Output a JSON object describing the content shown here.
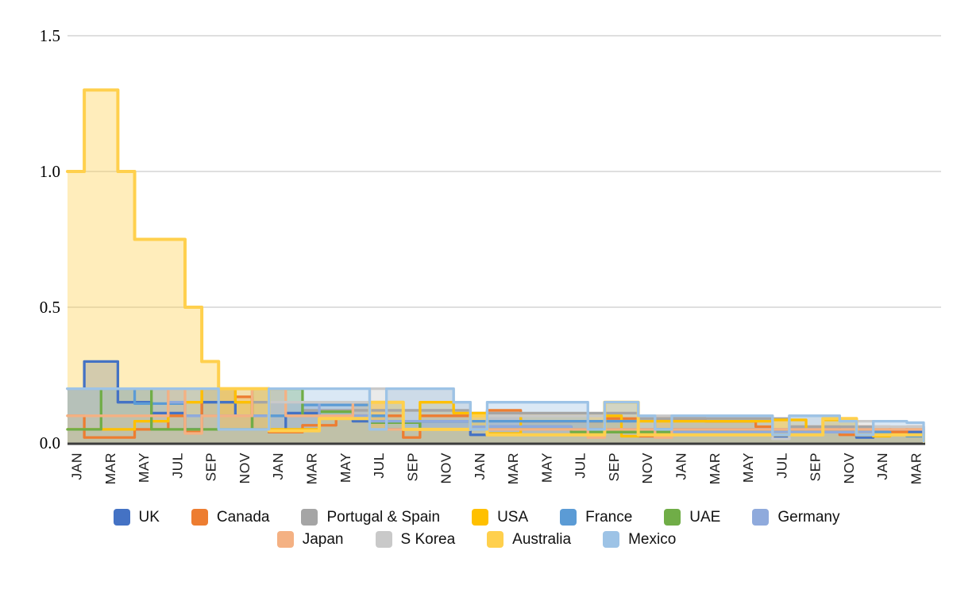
{
  "chart_data": {
    "type": "area",
    "subtype": "step-monthly",
    "title": "",
    "xlabel": "",
    "ylabel": "",
    "ylim": [
      0,
      1.5
    ],
    "y_ticks": [
      0,
      0.5,
      1,
      1.5
    ],
    "y_tick_labels": [
      "0.0",
      "0.5",
      "1.0",
      "1.5"
    ],
    "grid": true,
    "axis_color": "#3c3c3c",
    "gridline_color": "#cccccc",
    "legend_position": "bottom",
    "months": [
      "JAN",
      "FEB",
      "MAR",
      "APR",
      "MAY",
      "JUN",
      "JUL",
      "AUG",
      "SEP",
      "OCT",
      "NOV",
      "DEC",
      "JAN",
      "FEB",
      "MAR",
      "APR",
      "MAY",
      "JUN",
      "JUL",
      "AUG",
      "SEP",
      "OCT",
      "NOV",
      "DEC",
      "JAN",
      "FEB",
      "MAR",
      "APR",
      "MAY",
      "JUN",
      "JUL",
      "AUG",
      "SEP",
      "OCT",
      "NOV",
      "DEC",
      "JAN",
      "FEB",
      "MAR",
      "APR",
      "MAY",
      "JUN",
      "JUL",
      "AUG",
      "SEP",
      "OCT",
      "NOV",
      "DEC",
      "JAN",
      "FEB",
      "MAR"
    ],
    "x_tick_every": 2,
    "legend_rows": [
      [
        "UK",
        "Canada",
        "Portugal & Spain",
        "USA",
        "France",
        "UAE",
        "Germany"
      ],
      [
        "Japan",
        "S Korea",
        "Australia",
        "Mexico"
      ]
    ],
    "series": [
      {
        "name": "UK",
        "id": "uk",
        "color": "#4472C4",
        "values": [
          0.2,
          0.3,
          0.3,
          0.15,
          0.15,
          0.11,
          0.11,
          0.05,
          0.15,
          0.15,
          0.1,
          0.05,
          0.04,
          0.11,
          0.11,
          0.1,
          0.1,
          0.08,
          0.08,
          0.05,
          0.05,
          0.08,
          0.08,
          0.08,
          0.03,
          0.06,
          0.06,
          0.06,
          0.06,
          0.06,
          0.05,
          0.05,
          0.05,
          0.05,
          0.05,
          0.05,
          0.05,
          0.05,
          0.05,
          0.05,
          0.05,
          0.05,
          0.02,
          0.04,
          0.04,
          0.04,
          0.04,
          0.02,
          0.04,
          0.04,
          0.04
        ]
      },
      {
        "name": "Canada",
        "id": "canada",
        "color": "#ED7D31",
        "values": [
          0.1,
          0.02,
          0.02,
          0.02,
          0.05,
          0.05,
          0.1,
          0.04,
          0.2,
          0.2,
          0.17,
          0.1,
          0.04,
          0.04,
          0.065,
          0.065,
          0.1,
          0.1,
          0.1,
          0.1,
          0.02,
          0.1,
          0.1,
          0.1,
          0.05,
          0.12,
          0.12,
          0.08,
          0.08,
          0.08,
          0.08,
          0.08,
          0.09,
          0.09,
          0.025,
          0.09,
          0.09,
          0.09,
          0.08,
          0.08,
          0.08,
          0.06,
          0.03,
          0.06,
          0.06,
          0.06,
          0.03,
          0.06,
          0.06,
          0.04,
          0.06
        ]
      },
      {
        "name": "Portugal & Spain",
        "id": "portugal-and-spain",
        "color": "#A5A5A5",
        "values": [
          0.2,
          0.2,
          0.2,
          0.2,
          0.2,
          0.2,
          0.2,
          0.2,
          0.2,
          0.2,
          0.15,
          0.15,
          0.15,
          0.15,
          0.12,
          0.12,
          0.12,
          0.12,
          0.12,
          0.12,
          0.12,
          0.12,
          0.12,
          0.12,
          0.11,
          0.11,
          0.11,
          0.11,
          0.11,
          0.11,
          0.11,
          0.11,
          0.11,
          0.11,
          0.09,
          0.09,
          0.09,
          0.09,
          0.09,
          0.09,
          0.09,
          0.09,
          0.09,
          0.06,
          0.06,
          0.06,
          0.06,
          0.06,
          0.05,
          0.05,
          0.05
        ]
      },
      {
        "name": "USA",
        "id": "usa",
        "color": "#FFC000",
        "values": [
          0.05,
          0.05,
          0.05,
          0.05,
          0.08,
          0.08,
          0.15,
          0.15,
          0.2,
          0.2,
          0.15,
          0.05,
          0.05,
          0.05,
          0.05,
          0.09,
          0.09,
          0.15,
          0.15,
          0.15,
          0.05,
          0.15,
          0.15,
          0.11,
          0.11,
          0.035,
          0.035,
          0.1,
          0.1,
          0.1,
          0.1,
          0.1,
          0.1,
          0.025,
          0.08,
          0.08,
          0.08,
          0.08,
          0.08,
          0.08,
          0.08,
          0.08,
          0.085,
          0.085,
          0.03,
          0.085,
          0.085,
          0.03,
          0.025,
          0.03,
          0.025
        ]
      },
      {
        "name": "France",
        "id": "france",
        "color": "#5B9BD5",
        "values": [
          0.2,
          0.2,
          0.2,
          0.2,
          0.145,
          0.145,
          0.145,
          0.1,
          0.1,
          0.1,
          0.1,
          0.1,
          0.1,
          0.1,
          0.14,
          0.14,
          0.14,
          0.14,
          0.1,
          0.08,
          0.08,
          0.08,
          0.08,
          0.08,
          0.08,
          0.08,
          0.08,
          0.08,
          0.08,
          0.08,
          0.08,
          0.08,
          0.08,
          0.08,
          0.05,
          0.05,
          0.05,
          0.05,
          0.05,
          0.05,
          0.05,
          0.05,
          0.05,
          0.05,
          0.05,
          0.05,
          0.05,
          0.05,
          0.04,
          0.03,
          0.025
        ]
      },
      {
        "name": "UAE",
        "id": "uae",
        "color": "#70AD47",
        "values": [
          0.05,
          0.05,
          0.2,
          0.2,
          0.2,
          0.05,
          0.05,
          0.05,
          0.05,
          0.05,
          0.05,
          0.2,
          0.2,
          0.2,
          0.1,
          0.115,
          0.115,
          0.09,
          0.075,
          0.075,
          0.075,
          0.05,
          0.05,
          0.05,
          0.05,
          0.05,
          0.05,
          0.05,
          0.05,
          0.05,
          0.04,
          0.04,
          0.04,
          0.04,
          0.04,
          0.04,
          0.04,
          0.04,
          0.04,
          0.04,
          0.04,
          0.04,
          0.04,
          0.04,
          0.04,
          0.04,
          0.04,
          0.04,
          0.03,
          0.03,
          0.03
        ]
      },
      {
        "name": "Germany",
        "id": "germany",
        "color": "#8FAADC",
        "values": [
          0.2,
          0.2,
          0.2,
          0.2,
          0.2,
          0.2,
          0.15,
          0.1,
          0.1,
          0.1,
          0.1,
          0.1,
          0.15,
          0.15,
          0.15,
          0.1,
          0.1,
          0.1,
          0.08,
          0.08,
          0.08,
          0.08,
          0.08,
          0.08,
          0.06,
          0.06,
          0.06,
          0.06,
          0.06,
          0.06,
          0.05,
          0.05,
          0.05,
          0.05,
          0.05,
          0.05,
          0.04,
          0.04,
          0.04,
          0.04,
          0.04,
          0.04,
          0.04,
          0.04,
          0.04,
          0.04,
          0.04,
          0.04,
          0.03,
          0.03,
          0.03
        ]
      },
      {
        "name": "Japan",
        "id": "japan",
        "color": "#F4B183",
        "values": [
          0.1,
          0.1,
          0.1,
          0.1,
          0.1,
          0.1,
          0.2,
          0.035,
          0.1,
          0.1,
          0.1,
          0.2,
          0.2,
          0.1,
          0.1,
          0.1,
          0.1,
          0.15,
          0.15,
          0.05,
          0.05,
          0.05,
          0.05,
          0.05,
          0.05,
          0.05,
          0.05,
          0.05,
          0.05,
          0.05,
          0.05,
          0.02,
          0.05,
          0.05,
          0.05,
          0.02,
          0.05,
          0.05,
          0.05,
          0.05,
          0.05,
          0.05,
          0.05,
          0.05,
          0.05,
          0.05,
          0.05,
          0.05,
          0.05,
          0.05,
          0.05
        ]
      },
      {
        "name": "S Korea",
        "id": "s-korea",
        "color": "#C9C9C9",
        "values": [
          0.2,
          0.2,
          0.2,
          0.2,
          0.2,
          0.2,
          0.2,
          0.2,
          0.2,
          0.2,
          0.2,
          0.2,
          0.15,
          0.15,
          0.15,
          0.15,
          0.15,
          0.15,
          0.2,
          0.2,
          0.2,
          0.2,
          0.2,
          0.15,
          0.1,
          0.1,
          0.1,
          0.1,
          0.1,
          0.1,
          0.1,
          0.1,
          0.15,
          0.15,
          0.1,
          0.1,
          0.1,
          0.1,
          0.1,
          0.1,
          0.1,
          0.1,
          0.015,
          0.1,
          0.1,
          0.1,
          0.08,
          0.08,
          0.06,
          0.06,
          0.06
        ]
      },
      {
        "name": "Australia",
        "id": "australia",
        "color": "#FFD04D",
        "values": [
          1.0,
          1.3,
          1.3,
          1.0,
          0.75,
          0.75,
          0.75,
          0.5,
          0.3,
          0.2,
          0.2,
          0.2,
          0.045,
          0.045,
          0.045,
          0.09,
          0.09,
          0.09,
          0.15,
          0.15,
          0.05,
          0.05,
          0.05,
          0.05,
          0.1,
          0.03,
          0.03,
          0.03,
          0.03,
          0.03,
          0.03,
          0.03,
          0.15,
          0.15,
          0.03,
          0.03,
          0.03,
          0.03,
          0.03,
          0.03,
          0.03,
          0.03,
          0.03,
          0.03,
          0.03,
          0.09,
          0.09,
          0.03,
          0.03,
          0.03,
          0.03
        ]
      },
      {
        "name": "Mexico",
        "id": "mexico",
        "color": "#9DC3E6",
        "values": [
          0.2,
          0.2,
          0.2,
          0.2,
          0.2,
          0.2,
          0.2,
          0.2,
          0.2,
          0.05,
          0.05,
          0.05,
          0.2,
          0.2,
          0.2,
          0.2,
          0.2,
          0.2,
          0.05,
          0.2,
          0.2,
          0.2,
          0.2,
          0.15,
          0.05,
          0.15,
          0.15,
          0.15,
          0.15,
          0.15,
          0.15,
          0.05,
          0.15,
          0.15,
          0.1,
          0.05,
          0.1,
          0.1,
          0.1,
          0.1,
          0.1,
          0.1,
          0.03,
          0.1,
          0.1,
          0.1,
          0.08,
          0.03,
          0.08,
          0.08,
          0.075
        ]
      }
    ]
  }
}
